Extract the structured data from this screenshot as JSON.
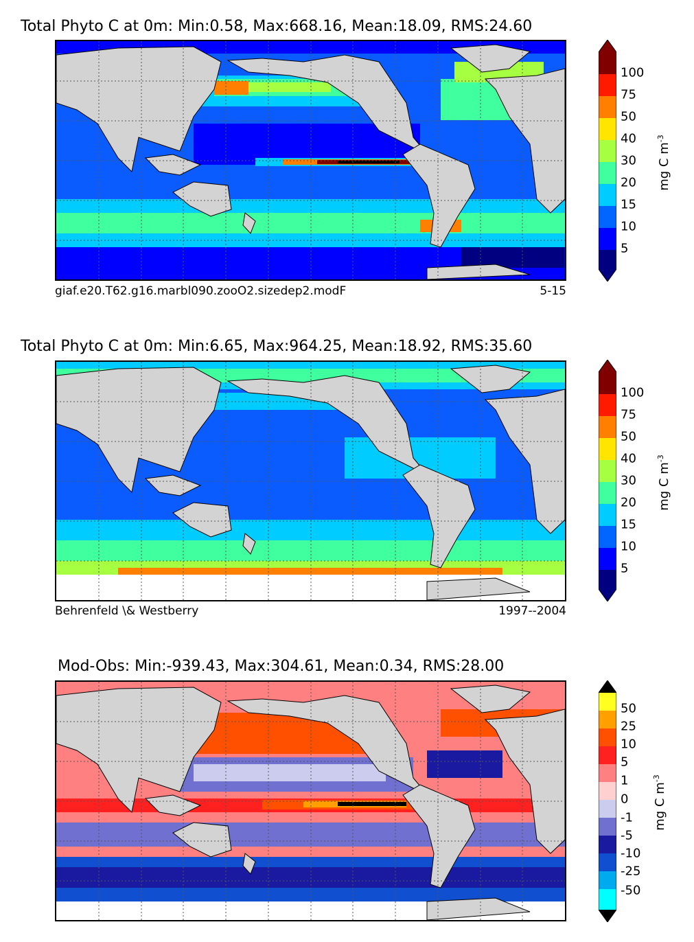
{
  "panels": [
    {
      "title": "Total Phyto C at 0m: Min:0.58, Max:668.16, Mean:18.09, RMS:24.60",
      "sub_left": "giaf.e20.T62.g16.marbl090.zooO2.sizedep2.modF",
      "sub_right": "5-15",
      "unit": "mg C m",
      "unit_exp": "-3",
      "ticks": [
        "100",
        "75",
        "50",
        "40",
        "30",
        "20",
        "15",
        "10",
        "5"
      ]
    },
    {
      "title": "Total Phyto C at 0m: Min:6.65, Max:964.25, Mean:18.92, RMS:35.60",
      "sub_left": "Behrenfeld \\& Westberry",
      "sub_right": "1997--2004",
      "unit": "mg C m",
      "unit_exp": "-3",
      "ticks": [
        "100",
        "75",
        "50",
        "40",
        "30",
        "20",
        "15",
        "10",
        "5"
      ]
    },
    {
      "title": "Mod-Obs: Min:-939.43, Max:304.61, Mean:0.34, RMS:28.00",
      "sub_left": "",
      "sub_right": "",
      "unit": "mg C m",
      "unit_exp": "-3",
      "ticks": [
        "50",
        "25",
        "10",
        "5",
        "1",
        "0",
        "-1",
        "-5",
        "-10",
        "-25",
        "-50"
      ]
    }
  ],
  "colors": {
    "land": "#d3d3d3",
    "phyto_scale": [
      "#000080",
      "#0000ff",
      "#0066ff",
      "#00ccff",
      "#40ff9f",
      "#a6ff40",
      "#ffe500",
      "#ff8000",
      "#ff1a00",
      "#a00000",
      "#800000"
    ],
    "diff_scale": [
      "#00ffff",
      "#00aaee",
      "#1050d0",
      "#1a1aa0",
      "#7070d0",
      "#ccccee",
      "#ffd0d0",
      "#ff8080",
      "#ff2020",
      "#ff5000",
      "#ffa000",
      "#ffff20"
    ]
  }
}
